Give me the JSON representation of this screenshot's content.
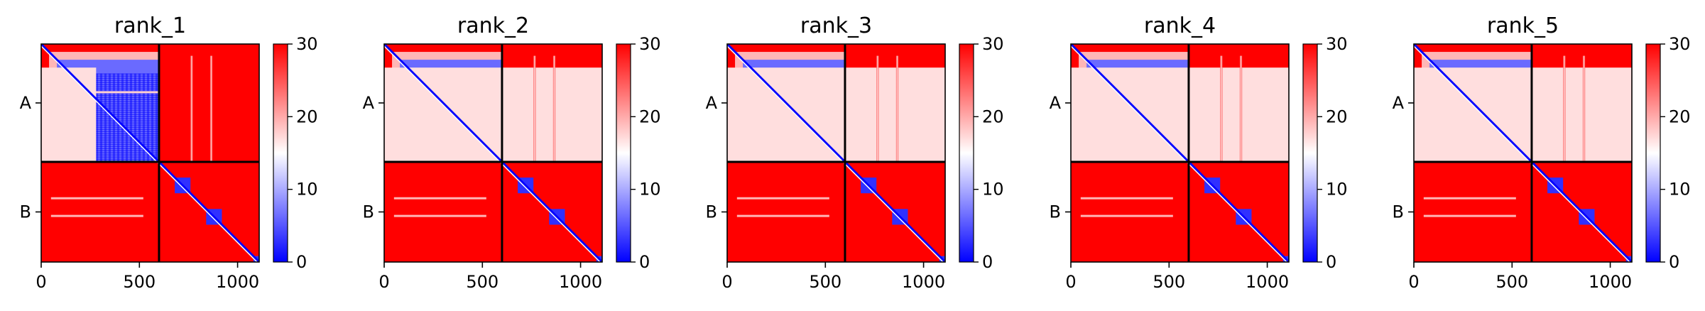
{
  "chart_data": {
    "type": "heatmap",
    "description_scope": "Predicted aligned error heatmaps for five ranked models",
    "colormap": {
      "name": "bwr",
      "low_color": "#0000ff",
      "mid_color": "#ffffff",
      "high_color": "#ff0000",
      "vmin": 0,
      "vmax": 30,
      "ticks": [
        "0",
        "10",
        "20",
        "30"
      ]
    },
    "x_ticks": [
      "0",
      "500",
      "1000"
    ],
    "x_tick_values": [
      0,
      500,
      1000
    ],
    "xlim": [
      0,
      1110
    ],
    "y_ticks": [
      "A",
      "B"
    ],
    "chains": [
      {
        "name": "A",
        "start": 0,
        "end": 600
      },
      {
        "name": "B",
        "start": 600,
        "end": 1110
      }
    ],
    "chain_boundary": 600,
    "total_length": 1110,
    "panels": [
      {
        "title": "rank_1"
      },
      {
        "title": "rank_2"
      },
      {
        "title": "rank_3"
      },
      {
        "title": "rank_4"
      },
      {
        "title": "rank_5"
      }
    ]
  }
}
